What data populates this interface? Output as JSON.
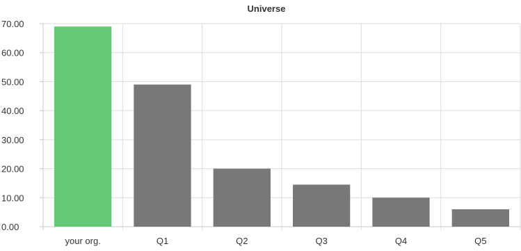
{
  "chart_data": {
    "type": "bar",
    "title": "Universe",
    "xlabel": "",
    "ylabel": "",
    "categories": [
      "your org.",
      "Q1",
      "Q2",
      "Q3",
      "Q4",
      "Q5"
    ],
    "values": [
      69.0,
      49.0,
      20.0,
      14.5,
      10.0,
      6.0
    ],
    "ylim": [
      0,
      70
    ],
    "yticks": [
      "0.00",
      "10.00",
      "20.00",
      "30.00",
      "40.00",
      "50.00",
      "60.00",
      "70.00"
    ],
    "grid": true,
    "colors": {
      "highlight": "#66c874",
      "default": "#777979"
    },
    "highlight_index": 0
  }
}
